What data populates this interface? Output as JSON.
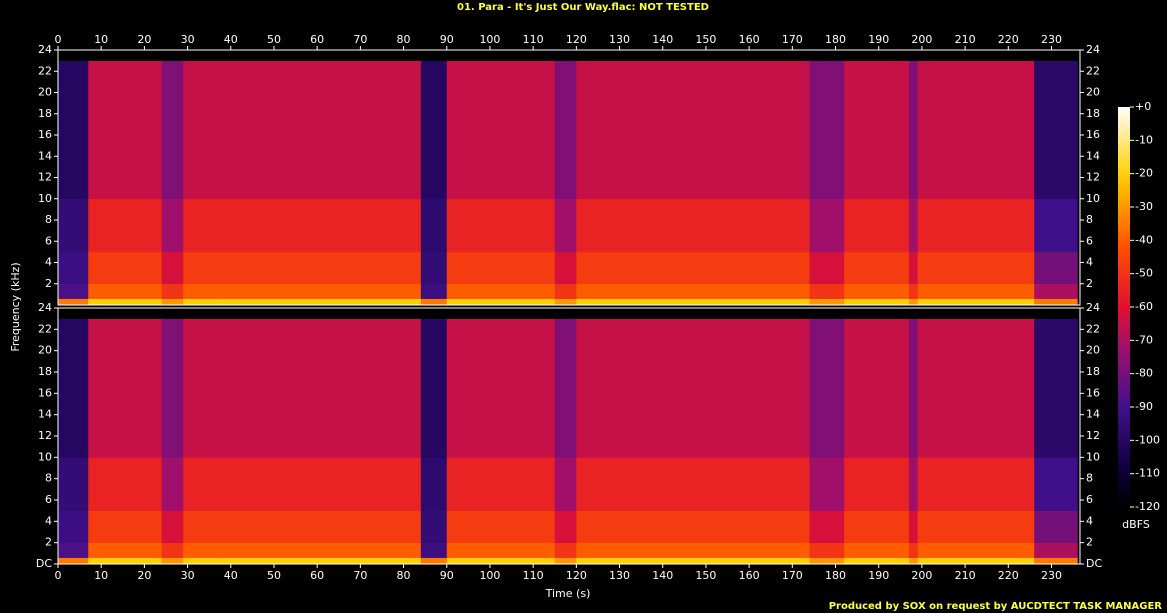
{
  "chart_data": {
    "type": "spectrogram",
    "title": "01. Para - It's Just Our Way.flac: NOT TESTED",
    "x_label": "Time (s)",
    "y_label": "Frequency (kHz)",
    "footer": "Produced by SOX on request by AUCDTECT TASK MANAGER",
    "xlim": [
      0,
      236.6
    ],
    "xticks": [
      0,
      10,
      20,
      30,
      40,
      50,
      60,
      70,
      80,
      90,
      100,
      110,
      120,
      130,
      140,
      150,
      160,
      170,
      180,
      190,
      200,
      210,
      220,
      230
    ],
    "time_edges": [
      0,
      7,
      24,
      29,
      37,
      84,
      90,
      115,
      120,
      174,
      182,
      197,
      199,
      226,
      236
    ],
    "freq_edges": [
      0,
      0.6,
      2,
      5,
      10,
      23,
      24
    ],
    "zlim": [
      -120,
      0
    ],
    "colorbar_label": "dBFS",
    "colorbar_ticks": [
      {
        "value": 0,
        "label": "+0"
      },
      -10,
      -20,
      -30,
      -40,
      -50,
      -60,
      -70,
      -80,
      -90,
      -100,
      -110,
      -120
    ],
    "channels": [
      {
        "ylim": [
          0,
          24
        ],
        "yticks": [
          2,
          4,
          6,
          8,
          10,
          12,
          14,
          16,
          18,
          20,
          22,
          24
        ],
        "z": [
          [
            -35,
            -88,
            -92,
            -95,
            -100,
            -120
          ],
          [
            -20,
            -40,
            -48,
            -55,
            -65,
            -120
          ],
          [
            -30,
            -50,
            -62,
            -72,
            -78,
            -120
          ],
          [
            -20,
            -40,
            -48,
            -55,
            -65,
            -120
          ],
          [
            -20,
            -40,
            -48,
            -55,
            -65,
            -120
          ],
          [
            -35,
            -92,
            -95,
            -97,
            -100,
            -120
          ],
          [
            -20,
            -40,
            -48,
            -55,
            -65,
            -120
          ],
          [
            -30,
            -50,
            -62,
            -72,
            -78,
            -120
          ],
          [
            -20,
            -40,
            -48,
            -55,
            -65,
            -120
          ],
          [
            -30,
            -50,
            -62,
            -72,
            -78,
            -120
          ],
          [
            -20,
            -40,
            -48,
            -55,
            -65,
            -120
          ],
          [
            -30,
            -50,
            -62,
            -72,
            -78,
            -120
          ],
          [
            -20,
            -40,
            -48,
            -55,
            -65,
            -120
          ],
          [
            -35,
            -70,
            -80,
            -90,
            -98,
            -120
          ]
        ]
      },
      {
        "ylim": [
          0,
          24
        ],
        "yticks": [
          {
            "value": 0,
            "label": "DC"
          },
          2,
          4,
          6,
          8,
          10,
          12,
          14,
          16,
          18,
          20,
          22,
          24
        ],
        "z": [
          [
            -35,
            -88,
            -92,
            -95,
            -100,
            -120
          ],
          [
            -20,
            -40,
            -48,
            -55,
            -65,
            -120
          ],
          [
            -30,
            -50,
            -62,
            -72,
            -78,
            -120
          ],
          [
            -20,
            -40,
            -48,
            -55,
            -65,
            -120
          ],
          [
            -20,
            -40,
            -48,
            -55,
            -65,
            -120
          ],
          [
            -35,
            -92,
            -95,
            -97,
            -100,
            -120
          ],
          [
            -20,
            -40,
            -48,
            -55,
            -65,
            -120
          ],
          [
            -30,
            -50,
            -62,
            -72,
            -78,
            -120
          ],
          [
            -20,
            -40,
            -48,
            -55,
            -65,
            -120
          ],
          [
            -30,
            -50,
            -62,
            -72,
            -78,
            -120
          ],
          [
            -20,
            -40,
            -48,
            -55,
            -65,
            -120
          ],
          [
            -30,
            -50,
            -62,
            -72,
            -78,
            -120
          ],
          [
            -20,
            -40,
            -48,
            -55,
            -65,
            -120
          ],
          [
            -35,
            -70,
            -80,
            -90,
            -98,
            -120
          ]
        ]
      }
    ]
  }
}
